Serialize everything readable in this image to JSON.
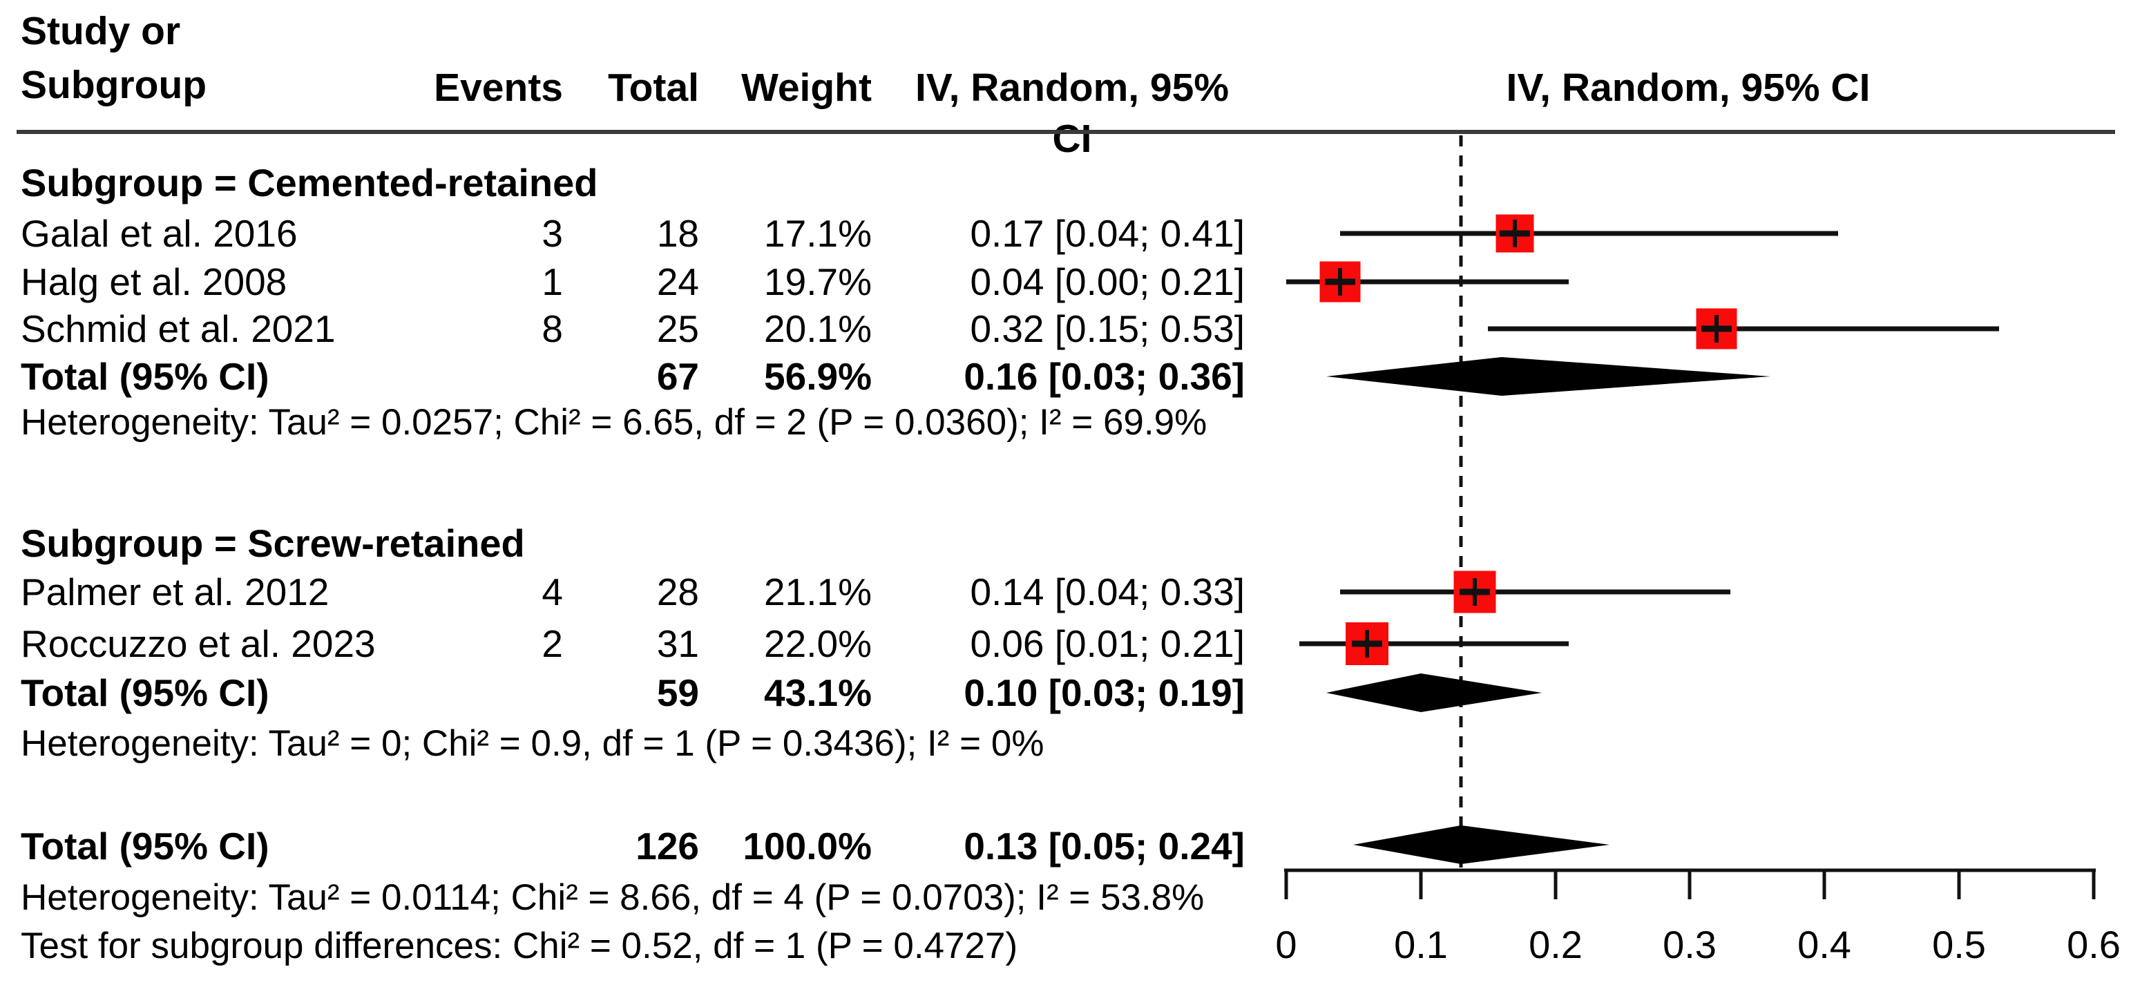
{
  "header": {
    "study_col": "Study or\nSubgroup",
    "events": "Events",
    "total": "Total",
    "weight": "Weight",
    "effect": "IV, Random, 95% CI",
    "plot": "IV, Random, 95% CI"
  },
  "sections": {
    "cemented": {
      "title": "Subgroup = Cemented-retained",
      "rows": [
        {
          "label": "Galal et al. 2016",
          "events": "3",
          "total": "18",
          "weight": "17.1%",
          "ci_text": "0.17 [0.04; 0.41]"
        },
        {
          "label": "Halg et al. 2008",
          "events": "1",
          "total": "24",
          "weight": "19.7%",
          "ci_text": "0.04 [0.00; 0.21]"
        },
        {
          "label": "Schmid et al. 2021",
          "events": "8",
          "total": "25",
          "weight": "20.1%",
          "ci_text": "0.32 [0.15; 0.53]"
        }
      ],
      "total_row": {
        "label": "Total (95% CI)",
        "total": "67",
        "weight": "56.9%",
        "ci_text": "0.16 [0.03; 0.36]"
      },
      "heterogeneity": "Heterogeneity: Tau² = 0.0257; Chi² = 6.65, df = 2 (P = 0.0360); I² = 69.9%"
    },
    "screw": {
      "title": "Subgroup = Screw-retained",
      "rows": [
        {
          "label": "Palmer et al. 2012",
          "events": "4",
          "total": "28",
          "weight": "21.1%",
          "ci_text": "0.14 [0.04; 0.33]"
        },
        {
          "label": "Roccuzzo et al. 2023",
          "events": "2",
          "total": "31",
          "weight": "22.0%",
          "ci_text": "0.06 [0.01; 0.21]"
        }
      ],
      "total_row": {
        "label": "Total (95% CI)",
        "total": "59",
        "weight": "43.1%",
        "ci_text": "0.10 [0.03; 0.19]"
      },
      "heterogeneity": "Heterogeneity: Tau² = 0; Chi² = 0.9, df = 1 (P = 0.3436); I² = 0%"
    }
  },
  "overall": {
    "total_row": {
      "label": "Total (95% CI)",
      "total": "126",
      "weight": "100.0%",
      "ci_text": "0.13 [0.05; 0.24]"
    },
    "heterogeneity": "Heterogeneity: Tau² = 0.0114; Chi² = 8.66, df = 4 (P = 0.0703); I² = 53.8%",
    "subgroup_test": "Test for subgroup differences: Chi² = 0.52, df = 1 (P = 0.4727)"
  },
  "colors": {
    "square_red": "#f80b0b",
    "line_black": "#111111",
    "diamond_black": "#000000",
    "rule_gray": "#3a3a3a"
  },
  "chart_data": {
    "type": "forest",
    "effect_measure": "IV, Random, 95% CI",
    "xlim": [
      0,
      0.6
    ],
    "ticks": [
      "0",
      "0.1",
      "0.2",
      "0.3",
      "0.4",
      "0.5",
      "0.6"
    ],
    "tick_values": [
      0,
      0.1,
      0.2,
      0.3,
      0.4,
      0.5,
      0.6
    ],
    "reference_line": 0.13,
    "studies": [
      {
        "id": "galal",
        "label": "Galal et al. 2016",
        "subgroup": "Cemented-retained",
        "events": 3,
        "total": 18,
        "weight_pct": 17.1,
        "estimate": 0.17,
        "ci": [
          0.04,
          0.41
        ]
      },
      {
        "id": "halg",
        "label": "Halg et al. 2008",
        "subgroup": "Cemented-retained",
        "events": 1,
        "total": 24,
        "weight_pct": 19.7,
        "estimate": 0.04,
        "ci": [
          0.0,
          0.21
        ]
      },
      {
        "id": "schmid",
        "label": "Schmid et al. 2021",
        "subgroup": "Cemented-retained",
        "events": 8,
        "total": 25,
        "weight_pct": 20.1,
        "estimate": 0.32,
        "ci": [
          0.15,
          0.53
        ]
      },
      {
        "id": "palmer",
        "label": "Palmer et al. 2012",
        "subgroup": "Screw-retained",
        "events": 4,
        "total": 28,
        "weight_pct": 21.1,
        "estimate": 0.14,
        "ci": [
          0.04,
          0.33
        ]
      },
      {
        "id": "roccuzzo",
        "label": "Roccuzzo et al. 2023",
        "subgroup": "Screw-retained",
        "events": 2,
        "total": 31,
        "weight_pct": 22.0,
        "estimate": 0.06,
        "ci": [
          0.01,
          0.21
        ]
      }
    ],
    "subtotals": [
      {
        "id": "cem_total",
        "label": "Total (95% CI)",
        "subgroup": "Cemented-retained",
        "total": 67,
        "weight_pct": 56.9,
        "estimate": 0.16,
        "ci": [
          0.03,
          0.36
        ]
      },
      {
        "id": "screw_total",
        "label": "Total (95% CI)",
        "subgroup": "Screw-retained",
        "total": 59,
        "weight_pct": 43.1,
        "estimate": 0.1,
        "ci": [
          0.03,
          0.19
        ]
      }
    ],
    "overall": {
      "id": "overall",
      "label": "Total (95% CI)",
      "total": 126,
      "weight_pct": 100.0,
      "estimate": 0.13,
      "ci": [
        0.05,
        0.24
      ]
    }
  }
}
